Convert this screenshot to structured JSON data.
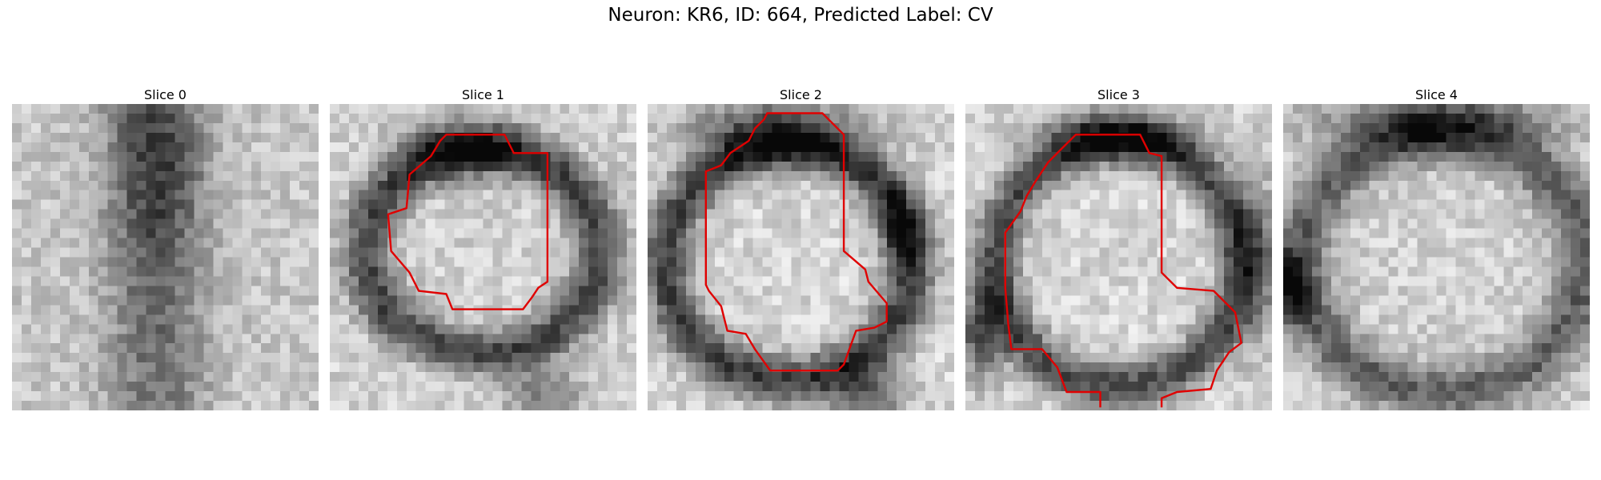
{
  "figure": {
    "title": "Neuron: KR6, ID: 664, Predicted Label: CV"
  },
  "panels": [
    {
      "title": "Slice 0"
    },
    {
      "title": "Slice 1"
    },
    {
      "title": "Slice 2"
    },
    {
      "title": "Slice 3"
    },
    {
      "title": "Slice 4"
    }
  ],
  "colors": {
    "contour": "#e00000",
    "background": "#ffffff"
  }
}
